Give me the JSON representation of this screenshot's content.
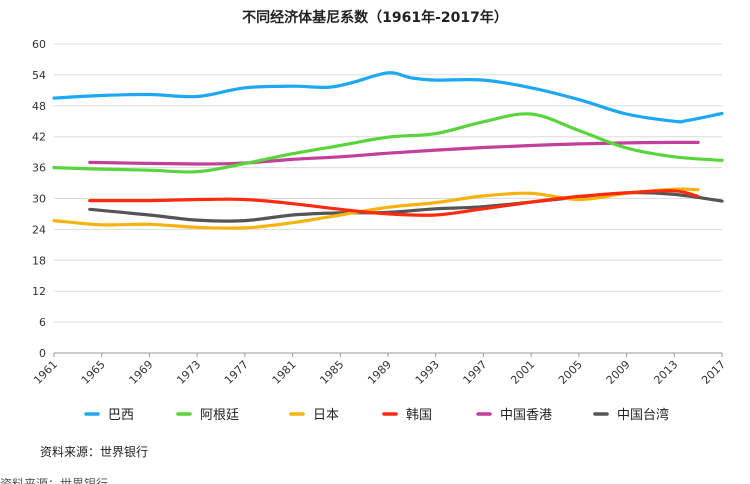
{
  "chart_data": {
    "type": "line",
    "title": "不同经济体基尼系数（1961年-2017年）",
    "xlabel": "",
    "ylabel": "",
    "xlim": [
      1961,
      2017
    ],
    "ylim": [
      0,
      60
    ],
    "xticks": [
      1961,
      1965,
      1969,
      1973,
      1977,
      1981,
      1985,
      1989,
      1993,
      1997,
      2001,
      2005,
      2009,
      2013,
      2017
    ],
    "yticks": [
      0,
      6,
      12,
      18,
      24,
      30,
      36,
      42,
      48,
      54,
      60
    ],
    "grid": true,
    "legend_position": "bottom",
    "series": [
      {
        "name": "巴西",
        "color": "#1ea7f2",
        "x": [
          1961,
          1965,
          1969,
          1973,
          1977,
          1981,
          1984,
          1986,
          1989,
          1991,
          1993,
          1997,
          2001,
          2005,
          2009,
          2013,
          2014,
          2017
        ],
        "y": [
          49.5,
          50.0,
          50.2,
          49.8,
          51.5,
          51.8,
          51.6,
          52.5,
          54.4,
          53.4,
          53.0,
          53.0,
          51.5,
          49.2,
          46.4,
          45.0,
          45.1,
          46.5
        ]
      },
      {
        "name": "阿根廷",
        "color": "#5ad43d",
        "x": [
          1961,
          1965,
          1969,
          1973,
          1977,
          1981,
          1985,
          1989,
          1993,
          1997,
          2001,
          2005,
          2009,
          2013,
          2017
        ],
        "y": [
          36.0,
          35.7,
          35.5,
          35.2,
          36.8,
          38.7,
          40.3,
          41.9,
          42.6,
          44.9,
          46.4,
          43.2,
          39.8,
          38.1,
          37.4
        ]
      },
      {
        "name": "日本",
        "color": "#f6b20f",
        "x": [
          1961,
          1965,
          1969,
          1973,
          1977,
          1981,
          1985,
          1989,
          1993,
          1997,
          2001,
          2005,
          2009,
          2013,
          2015
        ],
        "y": [
          25.7,
          24.9,
          25.0,
          24.4,
          24.3,
          25.3,
          26.8,
          28.3,
          29.2,
          30.5,
          31.0,
          29.8,
          31.0,
          31.8,
          31.7
        ]
      },
      {
        "name": "韩国",
        "color": "#ff2a0e",
        "x": [
          1964,
          1969,
          1973,
          1977,
          1981,
          1985,
          1989,
          1993,
          1997,
          2001,
          2005,
          2009,
          2013,
          2015
        ],
        "y": [
          29.6,
          29.6,
          29.8,
          29.8,
          29.0,
          27.9,
          27.0,
          26.8,
          28.0,
          29.3,
          30.4,
          31.1,
          31.5,
          30.4
        ]
      },
      {
        "name": "中国香港",
        "color": "#c23f9a",
        "x": [
          1964,
          1973,
          1977,
          1981,
          1985,
          1989,
          1993,
          1997,
          2001,
          2005,
          2009,
          2013,
          2015
        ],
        "y": [
          37.0,
          36.7,
          36.9,
          37.6,
          38.1,
          38.8,
          39.4,
          39.9,
          40.3,
          40.6,
          40.8,
          40.9,
          40.9
        ]
      },
      {
        "name": "中国台湾",
        "color": "#555555",
        "x": [
          1964,
          1969,
          1973,
          1977,
          1981,
          1985,
          1989,
          1993,
          1997,
          2001,
          2005,
          2009,
          2013,
          2017
        ],
        "y": [
          27.9,
          26.8,
          25.8,
          25.7,
          26.8,
          27.2,
          27.3,
          28.0,
          28.4,
          29.3,
          30.3,
          31.1,
          30.8,
          29.5
        ]
      }
    ]
  },
  "source_note": "资料来源：世界银行",
  "cutoff_note": "资料来源：世界银行"
}
